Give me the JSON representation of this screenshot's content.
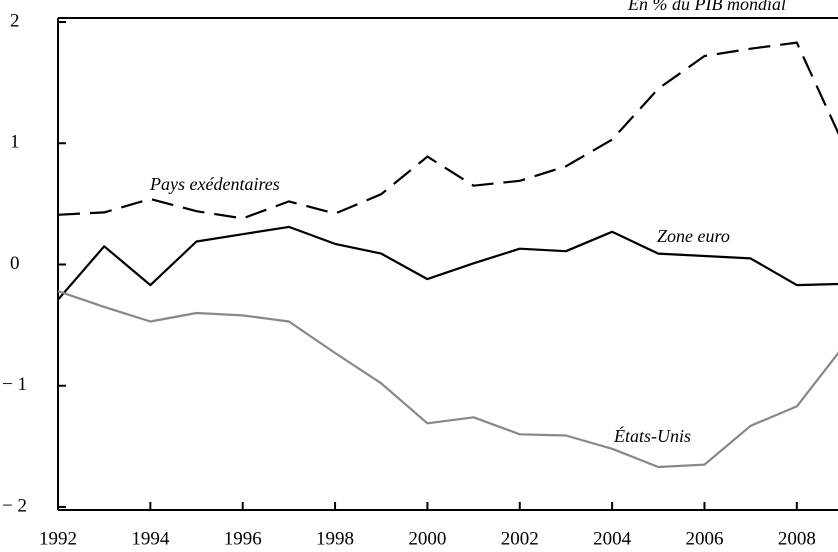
{
  "chart_data": {
    "type": "line",
    "subtitle": "En % du PIB mondial",
    "x": [
      1992,
      1993,
      1994,
      1995,
      1996,
      1997,
      1998,
      1999,
      2000,
      2001,
      2002,
      2003,
      2004,
      2005,
      2006,
      2007,
      2008,
      2009
    ],
    "series": [
      {
        "name": "Pays exédentaires",
        "color": "#000000",
        "dash": true,
        "values": [
          0.41,
          0.43,
          0.54,
          0.44,
          0.38,
          0.52,
          0.42,
          0.58,
          0.89,
          0.65,
          0.69,
          0.81,
          1.03,
          1.45,
          1.72,
          1.78,
          1.83,
          1.0
        ]
      },
      {
        "name": "Zone euro",
        "color": "#000000",
        "dash": false,
        "values": [
          -0.29,
          0.15,
          -0.17,
          0.19,
          0.25,
          0.31,
          0.17,
          0.09,
          -0.12,
          0.01,
          0.13,
          0.11,
          0.27,
          0.09,
          0.07,
          0.05,
          -0.17,
          -0.16
        ]
      },
      {
        "name": "États-Unis",
        "color": "#888888",
        "dash": false,
        "values": [
          -0.22,
          -0.35,
          -0.47,
          -0.4,
          -0.42,
          -0.47,
          -0.73,
          -0.98,
          -1.31,
          -1.26,
          -1.4,
          -1.41,
          -1.52,
          -1.67,
          -1.65,
          -1.33,
          -1.17,
          -0.68
        ]
      }
    ],
    "xlim": [
      1992,
      2009
    ],
    "xticks": [
      1992,
      1994,
      1996,
      1998,
      2000,
      2002,
      2004,
      2006,
      2008
    ],
    "ylim": [
      -2,
      2
    ],
    "yticks": [
      {
        "value": -2,
        "label": "− 2"
      },
      {
        "value": -1,
        "label": "− 1"
      },
      0,
      1,
      2
    ]
  }
}
